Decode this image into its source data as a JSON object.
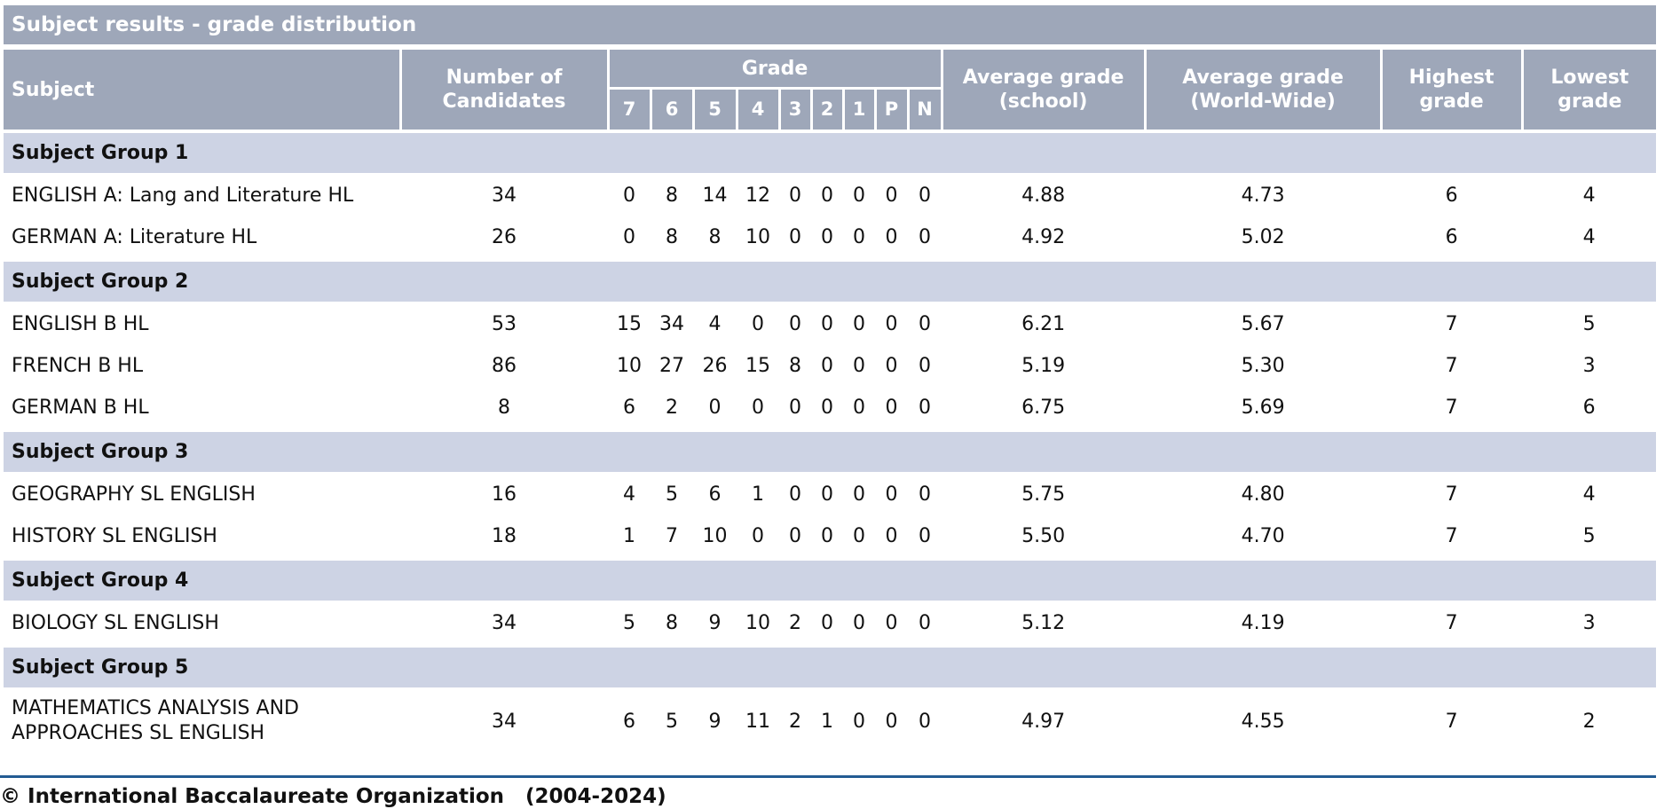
{
  "title": "Subject results - grade distribution",
  "columns": {
    "subject": "Subject",
    "candidates": "Number of Candidates",
    "grade": "Grade",
    "grades": [
      "7",
      "6",
      "5",
      "4",
      "3",
      "2",
      "1",
      "P",
      "N"
    ],
    "avg_school": "Average grade (school)",
    "avg_world": "Average grade (World-Wide)",
    "highest": "Highest grade",
    "lowest": "Lowest grade"
  },
  "groups": [
    {
      "name": "Subject Group 1",
      "rows": [
        {
          "subject": "ENGLISH A: Lang and Literature HL",
          "candidates": "34",
          "grades": [
            "0",
            "8",
            "14",
            "12",
            "0",
            "0",
            "0",
            "0",
            "0"
          ],
          "avg_school": "4.88",
          "avg_world": "4.73",
          "highest": "6",
          "lowest": "4"
        },
        {
          "subject": "GERMAN A: Literature HL",
          "candidates": "26",
          "grades": [
            "0",
            "8",
            "8",
            "10",
            "0",
            "0",
            "0",
            "0",
            "0"
          ],
          "avg_school": "4.92",
          "avg_world": "5.02",
          "highest": "6",
          "lowest": "4"
        }
      ]
    },
    {
      "name": "Subject Group 2",
      "rows": [
        {
          "subject": "ENGLISH B HL",
          "candidates": "53",
          "grades": [
            "15",
            "34",
            "4",
            "0",
            "0",
            "0",
            "0",
            "0",
            "0"
          ],
          "avg_school": "6.21",
          "avg_world": "5.67",
          "highest": "7",
          "lowest": "5"
        },
        {
          "subject": "FRENCH B HL",
          "candidates": "86",
          "grades": [
            "10",
            "27",
            "26",
            "15",
            "8",
            "0",
            "0",
            "0",
            "0"
          ],
          "avg_school": "5.19",
          "avg_world": "5.30",
          "highest": "7",
          "lowest": "3"
        },
        {
          "subject": "GERMAN B HL",
          "candidates": "8",
          "grades": [
            "6",
            "2",
            "0",
            "0",
            "0",
            "0",
            "0",
            "0",
            "0"
          ],
          "avg_school": "6.75",
          "avg_world": "5.69",
          "highest": "7",
          "lowest": "6"
        }
      ]
    },
    {
      "name": "Subject Group 3",
      "rows": [
        {
          "subject": "GEOGRAPHY SL ENGLISH",
          "candidates": "16",
          "grades": [
            "4",
            "5",
            "6",
            "1",
            "0",
            "0",
            "0",
            "0",
            "0"
          ],
          "avg_school": "5.75",
          "avg_world": "4.80",
          "highest": "7",
          "lowest": "4"
        },
        {
          "subject": "HISTORY SL ENGLISH",
          "candidates": "18",
          "grades": [
            "1",
            "7",
            "10",
            "0",
            "0",
            "0",
            "0",
            "0",
            "0"
          ],
          "avg_school": "5.50",
          "avg_world": "4.70",
          "highest": "7",
          "lowest": "5"
        }
      ]
    },
    {
      "name": "Subject Group 4",
      "rows": [
        {
          "subject": "BIOLOGY SL ENGLISH",
          "candidates": "34",
          "grades": [
            "5",
            "8",
            "9",
            "10",
            "2",
            "0",
            "0",
            "0",
            "0"
          ],
          "avg_school": "5.12",
          "avg_world": "4.19",
          "highest": "7",
          "lowest": "3"
        }
      ]
    },
    {
      "name": "Subject Group 5",
      "rows": [
        {
          "subject": "MATHEMATICS ANALYSIS AND APPROACHES SL ENGLISH",
          "candidates": "34",
          "grades": [
            "6",
            "5",
            "9",
            "11",
            "2",
            "1",
            "0",
            "0",
            "0"
          ],
          "avg_school": "4.97",
          "avg_world": "4.55",
          "highest": "7",
          "lowest": "2"
        }
      ]
    }
  ],
  "footer": "© International Baccalaureate Organization   (2004-2024)"
}
